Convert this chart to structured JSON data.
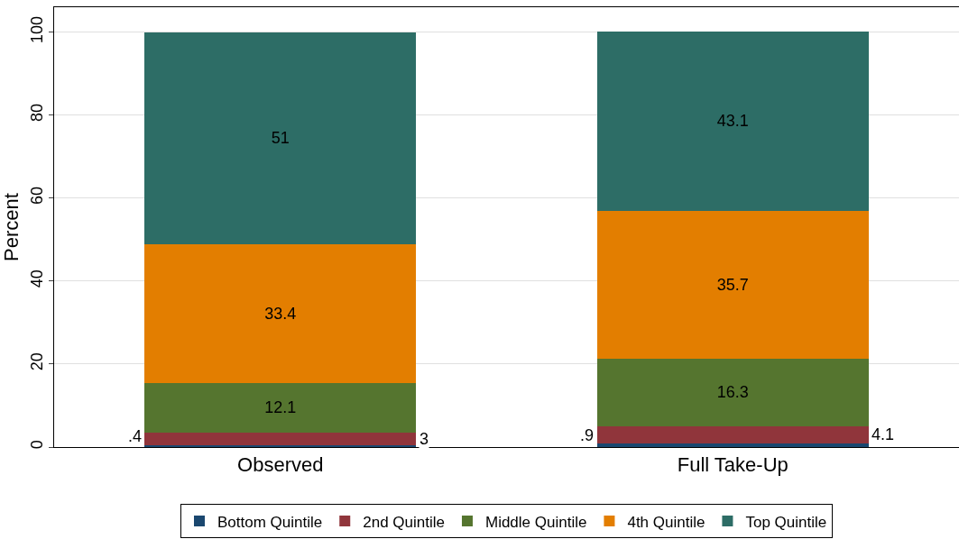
{
  "chart_data": {
    "type": "bar",
    "stacked": true,
    "ylabel": "Percent",
    "categories": [
      "Observed",
      "Full Take-Up"
    ],
    "ylim": [
      0,
      106
    ],
    "yticks": [
      0,
      20,
      40,
      60,
      80,
      100
    ],
    "grid": "y",
    "legend": "bottom",
    "series": [
      {
        "name": "Bottom Quintile",
        "color": "#1a476f",
        "values": [
          0.4,
          0.9
        ],
        "value_labels": [
          ".4",
          ".9"
        ]
      },
      {
        "name": "2nd Quintile",
        "color": "#90353b",
        "values": [
          3,
          4.1
        ],
        "value_labels": [
          "3",
          "4.1"
        ]
      },
      {
        "name": "Middle Quintile",
        "color": "#55752f",
        "values": [
          12.1,
          16.3
        ],
        "value_labels": [
          "12.1",
          "16.3"
        ]
      },
      {
        "name": "4th Quintile",
        "color": "#e37e00",
        "values": [
          33.4,
          35.7
        ],
        "value_labels": [
          "33.4",
          "35.7"
        ]
      },
      {
        "name": "Top Quintile",
        "color": "#2d6d66",
        "values": [
          51,
          43.1
        ],
        "value_labels": [
          "51",
          "43.1"
        ]
      }
    ]
  }
}
